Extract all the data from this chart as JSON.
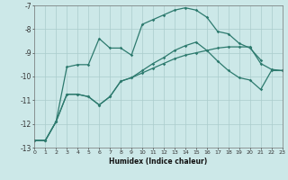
{
  "xlabel": "Humidex (Indice chaleur)",
  "bg_color": "#cce8e8",
  "grid_color": "#aacccc",
  "line_color": "#2d7a6e",
  "xlim": [
    0,
    23
  ],
  "ylim": [
    -13,
    -7
  ],
  "yticks": [
    -13,
    -12,
    -11,
    -10,
    -9,
    -8,
    -7
  ],
  "xticks": [
    0,
    1,
    2,
    3,
    4,
    5,
    6,
    7,
    8,
    9,
    10,
    11,
    12,
    13,
    14,
    15,
    16,
    17,
    18,
    19,
    20,
    21,
    22,
    23
  ],
  "series1_x": [
    0,
    1,
    2,
    3,
    4,
    5,
    6,
    7,
    8,
    9,
    10,
    11,
    12,
    13,
    14,
    15,
    16,
    17,
    18,
    19,
    20,
    21
  ],
  "series1_y": [
    -12.7,
    -12.7,
    -11.9,
    -9.6,
    -9.5,
    -9.5,
    -8.4,
    -8.8,
    -8.8,
    -9.1,
    -7.8,
    -7.6,
    -7.4,
    -7.2,
    -7.1,
    -7.2,
    -7.5,
    -8.1,
    -8.2,
    -8.6,
    -8.8,
    -9.3
  ],
  "series2_x": [
    0,
    1,
    2,
    3,
    4,
    5,
    6,
    7,
    8,
    9,
    10,
    11,
    12,
    13,
    14,
    15,
    16,
    17,
    18,
    19,
    20,
    21,
    22,
    23
  ],
  "series2_y": [
    -12.7,
    -12.7,
    -11.9,
    -10.75,
    -10.75,
    -10.85,
    -11.2,
    -10.85,
    -10.2,
    -10.05,
    -9.85,
    -9.65,
    -9.45,
    -9.25,
    -9.1,
    -9.0,
    -8.9,
    -8.8,
    -8.75,
    -8.75,
    -8.75,
    -9.45,
    -9.7,
    -9.75
  ],
  "series3_x": [
    0,
    1,
    2,
    3,
    4,
    5,
    6,
    7,
    8,
    9,
    10,
    11,
    12,
    13,
    14,
    15,
    16,
    17,
    18,
    19,
    20,
    21,
    22,
    23
  ],
  "series3_y": [
    -12.7,
    -12.7,
    -11.9,
    -10.75,
    -10.75,
    -10.85,
    -11.2,
    -10.85,
    -10.2,
    -10.05,
    -9.75,
    -9.45,
    -9.2,
    -8.9,
    -8.7,
    -8.55,
    -8.9,
    -9.35,
    -9.75,
    -10.05,
    -10.15,
    -10.55,
    -9.75,
    -9.75
  ]
}
